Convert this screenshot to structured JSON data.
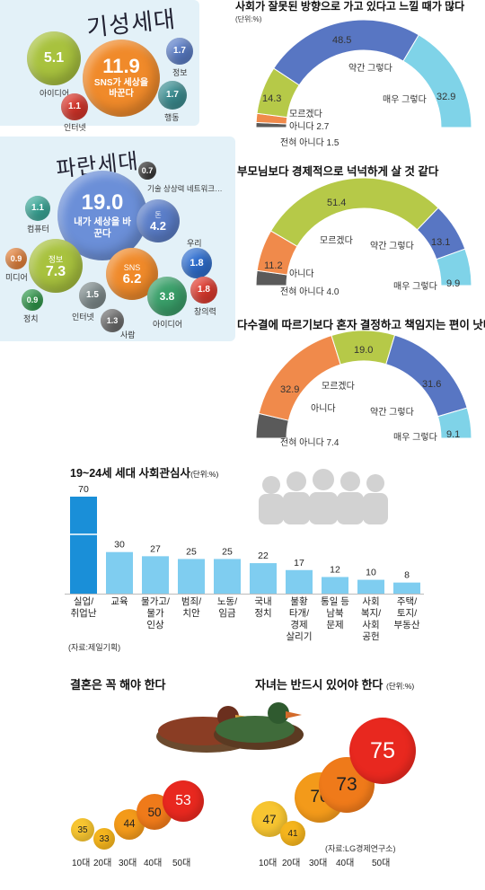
{
  "older_gen": {
    "title": "기성세대",
    "center": {
      "value": "11.9",
      "label": "SNS가 세상을 바꾼다"
    },
    "items": [
      {
        "value": "5.1",
        "label": "아이디어",
        "color": "#a8c23e"
      },
      {
        "value": "1.1",
        "label": "인터넷",
        "color": "#d8352a"
      },
      {
        "value": "1.7",
        "label": "정보",
        "color": "#5b7ec9"
      },
      {
        "value": "1.7",
        "label": "행동",
        "color": "#3c8f93"
      }
    ]
  },
  "blue_gen": {
    "title": "파란세대",
    "center": {
      "value": "19.0",
      "label": "내가 세상을 바꾼다"
    },
    "top_item": {
      "value": "0.7",
      "label": "기술 상상력 네트워크…"
    },
    "items": [
      {
        "value": "1.1",
        "label": "컴퓨터",
        "color": "#3aaa9a"
      },
      {
        "value": "4.2",
        "label": "돈",
        "prefix": "돈",
        "color": "#5b7ec9"
      },
      {
        "value": "0.9",
        "label": "미디어",
        "color": "#e8833a"
      },
      {
        "value": "7.3",
        "label": "정보",
        "prefix": "정보",
        "color": "#a8c23e"
      },
      {
        "value": "6.2",
        "label": "SNS",
        "prefix": "SNS",
        "color": "#f08a2a"
      },
      {
        "value": "1.8",
        "label": "우리",
        "color": "#2f6fd0"
      },
      {
        "value": "0.9",
        "label": "정치",
        "color": "#2e9a4a"
      },
      {
        "value": "1.5",
        "label": "인터넷",
        "color": "#7f8c8d"
      },
      {
        "value": "3.8",
        "label": "아이디어",
        "color": "#3aa06a"
      },
      {
        "value": "1.8",
        "label": "창의력",
        "color": "#e03a2e"
      },
      {
        "value": "1.3",
        "label": "사람",
        "color": "#6d6d6d"
      }
    ]
  },
  "gauges": [
    {
      "title": "사회가 잘못된 방향으로 가고 있다고 느낄 때가 많다",
      "unit": "(단위:%)",
      "segments": [
        {
          "label": "전혀 아니다",
          "value": 1.5,
          "color": "#5a5a5a"
        },
        {
          "label": "아니다",
          "value": 2.7,
          "color": "#f08a4b"
        },
        {
          "label": "모르겠다",
          "value": 14.3,
          "color": "#b6c948"
        },
        {
          "label": "약간 그렇다",
          "value": 48.5,
          "color": "#5876c3"
        },
        {
          "label": "매우 그렇다",
          "value": 32.9,
          "color": "#7fd3e8"
        }
      ],
      "texts": {
        "v4": "48.5",
        "v3": "14.3",
        "v5": "32.9",
        "l3": "모르겠다",
        "l2": "아니다  2.7",
        "l1": "전혀 아니다 1.5",
        "l4": "약간 그렇다",
        "l5": "매우 그렇다"
      }
    },
    {
      "title": "부모님보다 경제적으로 넉넉하게 살 것 같다",
      "segments": [
        {
          "label": "전혀 아니다",
          "value": 4.0,
          "color": "#5a5a5a"
        },
        {
          "label": "아니다",
          "value": 11.2,
          "color": "#f08a4b"
        },
        {
          "label": "모르겠다",
          "value": 51.4,
          "color": "#b6c948"
        },
        {
          "label": "약간 그렇다",
          "value": 13.1,
          "color": "#5876c3"
        },
        {
          "label": "매우 그렇다",
          "value": 9.9,
          "color": "#7fd3e8"
        }
      ],
      "texts": {
        "v3": "51.4",
        "v2": "11.2",
        "v4": "13.1",
        "v5": "9.9",
        "l3": "모르겠다",
        "l2": "아니다",
        "l1": "전혀 아니다 4.0",
        "l4": "약간 그렇다",
        "l5": "매우 그렇다"
      }
    },
    {
      "title": "다수결에 따르기보다 혼자 결정하고 책임지는 편이 낫다",
      "segments": [
        {
          "label": "전혀 아니다",
          "value": 7.4,
          "color": "#5a5a5a"
        },
        {
          "label": "아니다",
          "value": 32.9,
          "color": "#f08a4b"
        },
        {
          "label": "모르겠다",
          "value": 19.0,
          "color": "#b6c948"
        },
        {
          "label": "약간 그렇다",
          "value": 31.6,
          "color": "#5876c3"
        },
        {
          "label": "매우 그렇다",
          "value": 9.1,
          "color": "#7fd3e8"
        }
      ],
      "texts": {
        "v2": "32.9",
        "v3": "19.0",
        "v4": "31.6",
        "v5": "9.1",
        "l3": "모르겠다",
        "l2": "아니다",
        "l1": "전혀 아니다 7.4",
        "l4": "약간 그렇다",
        "l5": "매우 그렇다"
      }
    }
  ],
  "chart_data": {
    "type": "bar",
    "title": "19~24세 세대 사회관심사",
    "unit": "(단위:%)",
    "categories": [
      "실업/\n취업난",
      "교육",
      "물가고/\n물가\n인상",
      "범죄/\n치안",
      "노동/\n임금",
      "국내\n정치",
      "불황\n타개/\n경제\n살리기",
      "통일 등\n남북\n문제",
      "사회\n복지/\n사회\n공헌",
      "주택/\n토지/\n부동산"
    ],
    "values": [
      70,
      30,
      27,
      25,
      25,
      22,
      17,
      12,
      10,
      8
    ],
    "highlight_color": "#1a8fd8",
    "bar_color": "#7fcdf0",
    "source": "(자료:제일기획)"
  },
  "marriage": {
    "title": "결혼은 꼭 해야 한다",
    "ages": [
      "10대",
      "20대",
      "30대",
      "40대",
      "50대"
    ],
    "values": [
      35,
      33,
      44,
      50,
      53
    ]
  },
  "children": {
    "title": "자녀는 반드시 있어야 한다",
    "unit": "(단위:%)",
    "ages": [
      "10대",
      "20대",
      "30대",
      "40대",
      "50대"
    ],
    "values": [
      47,
      41,
      70,
      73,
      75
    ],
    "source": "(자료:LG경제연구소)"
  }
}
